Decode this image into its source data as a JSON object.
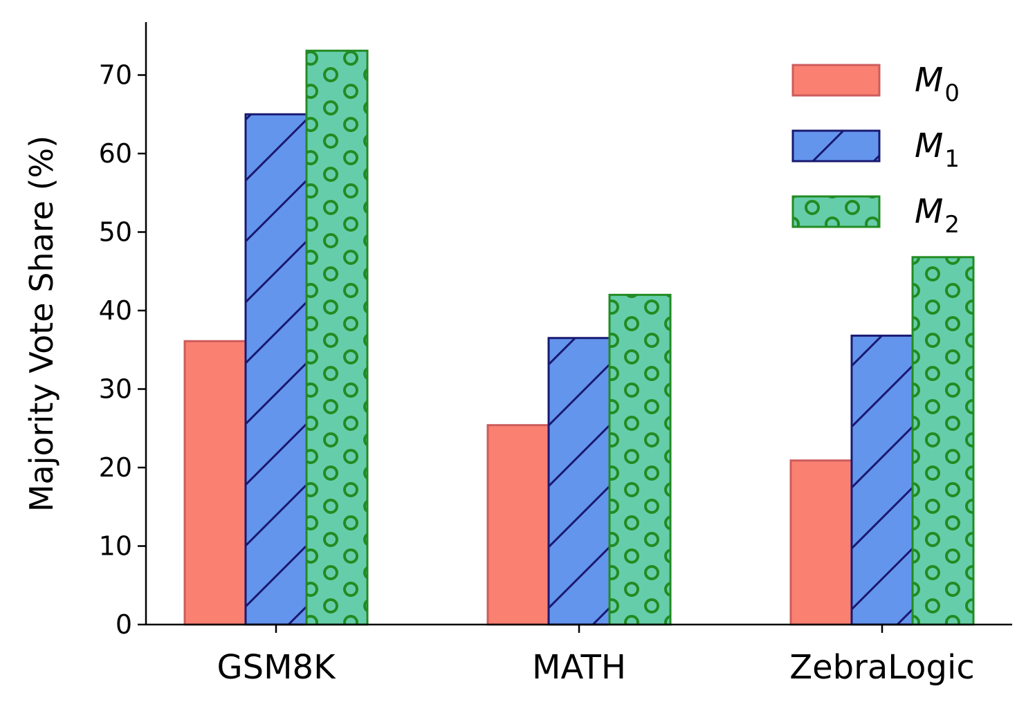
{
  "chart_data": {
    "type": "bar",
    "title": "",
    "xlabel": "",
    "ylabel": "Majority Vote Share (%)",
    "ylim": [
      0,
      77
    ],
    "yticks": [
      0,
      10,
      20,
      30,
      40,
      50,
      60,
      70
    ],
    "categories": [
      "GSM8K",
      "MATH",
      "ZebraLogic"
    ],
    "series": [
      {
        "name": "M",
        "sub": "0",
        "values": [
          36.1,
          25.4,
          20.9
        ],
        "color": "#fa8072",
        "edge": "#cd5c5c",
        "hatch": "none"
      },
      {
        "name": "M",
        "sub": "1",
        "values": [
          65.0,
          36.5,
          36.8
        ],
        "color": "#6495ed",
        "edge": "#191970",
        "hatch": "diagonal"
      },
      {
        "name": "M",
        "sub": "2",
        "values": [
          73.1,
          42.0,
          46.8
        ],
        "color": "#66cdaa",
        "edge": "#228b22",
        "hatch": "circles"
      }
    ],
    "legend_position": "top-right",
    "grid": false
  }
}
